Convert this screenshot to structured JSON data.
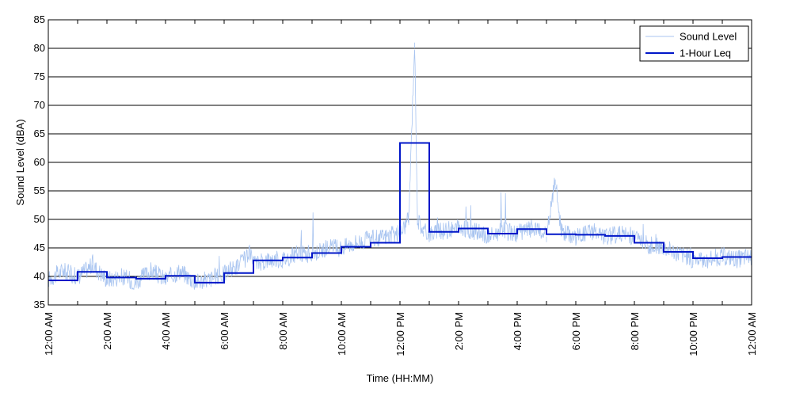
{
  "chart_data": {
    "type": "line",
    "title": "",
    "xlabel": "Time (HH:MM)",
    "ylabel": "Sound Level (dBA)",
    "ylim": [
      35,
      85
    ],
    "xlim_hours": [
      0,
      24
    ],
    "yticks": [
      35,
      40,
      45,
      50,
      55,
      60,
      65,
      70,
      75,
      80,
      85
    ],
    "xticks": [
      {
        "hour": 0,
        "label": "12:00 AM"
      },
      {
        "hour": 2,
        "label": "2:00 AM"
      },
      {
        "hour": 4,
        "label": "4:00 AM"
      },
      {
        "hour": 6,
        "label": "6:00 AM"
      },
      {
        "hour": 8,
        "label": "8:00 AM"
      },
      {
        "hour": 10,
        "label": "10:00 AM"
      },
      {
        "hour": 12,
        "label": "12:00 PM"
      },
      {
        "hour": 14,
        "label": "2:00 PM"
      },
      {
        "hour": 16,
        "label": "4:00 PM"
      },
      {
        "hour": 18,
        "label": "6:00 PM"
      },
      {
        "hour": 20,
        "label": "8:00 PM"
      },
      {
        "hour": 22,
        "label": "10:00 PM"
      },
      {
        "hour": 24,
        "label": "12:00 AM"
      }
    ],
    "grid": "horizontal",
    "legend_position": "top-right",
    "series": [
      {
        "name": "Sound Level",
        "color": "#a8c4f0",
        "style": "thin-line",
        "hours": [
          0,
          0.5,
          1,
          1.5,
          2,
          2.5,
          3,
          3.5,
          4,
          4.5,
          5,
          5.5,
          6,
          6.5,
          6.9,
          7,
          7.5,
          8,
          8.5,
          9,
          9.5,
          10,
          10.5,
          11,
          11.5,
          12,
          12.3,
          12.5,
          12.6,
          12.8,
          13,
          13.5,
          14,
          14.5,
          15,
          15.5,
          16,
          16.5,
          17,
          17.3,
          17.5,
          18,
          18.5,
          19,
          19.5,
          20,
          20.5,
          21,
          21.5,
          22,
          22.5,
          23,
          23.5,
          24
        ],
        "values": [
          39.5,
          41,
          40,
          42,
          39.5,
          40,
          39,
          41,
          39.5,
          41,
          39,
          39.5,
          40.5,
          42,
          44,
          42,
          43,
          43,
          44,
          44,
          45,
          45,
          46,
          46.5,
          47,
          47.5,
          50,
          81,
          50,
          48,
          47.5,
          48,
          48.5,
          48,
          47,
          48,
          47.5,
          48.5,
          47,
          57,
          48,
          47,
          48,
          47,
          47.5,
          47,
          45.5,
          45,
          44,
          43,
          43,
          43.5,
          43,
          43.5
        ]
      },
      {
        "name": "1-Hour Leq",
        "color": "#0016c8",
        "style": "step",
        "values": [
          39.3,
          40.8,
          39.8,
          39.6,
          40.1,
          38.9,
          40.6,
          42.8,
          43.3,
          44.1,
          45.2,
          45.9,
          63.4,
          47.8,
          48.4,
          47.5,
          48.3,
          47.4,
          47.3,
          47.1,
          45.9,
          44.3,
          43.2,
          43.4
        ]
      }
    ]
  }
}
